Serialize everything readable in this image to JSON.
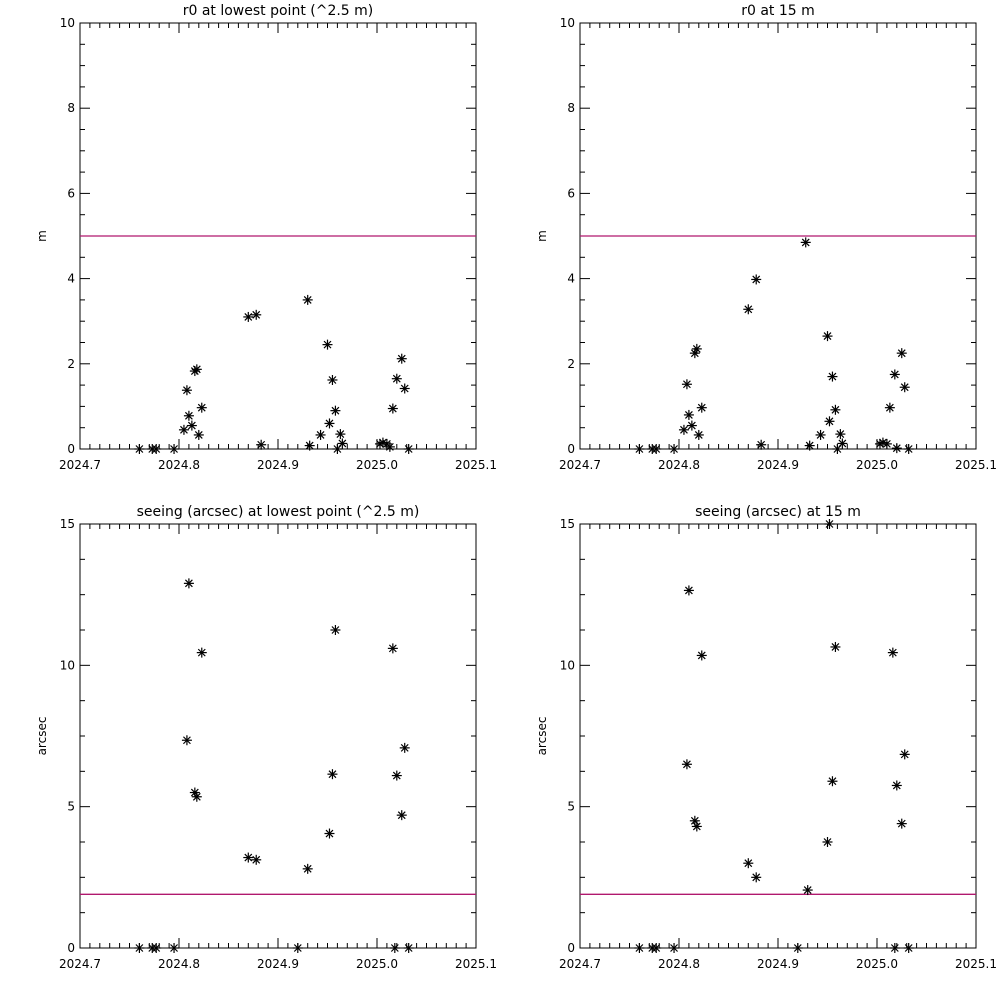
{
  "chart_data": [
    {
      "type": "scatter",
      "title": "r0 at lowest point (^2.5 m)",
      "xlabel": "",
      "ylabel": "m",
      "xlim": [
        2024.7,
        2025.1
      ],
      "ylim": [
        0,
        10
      ],
      "xticks": [
        "2024.7",
        "2024.8",
        "2024.9",
        "2025.0",
        "2025.1"
      ],
      "yticks": [
        "0",
        "2",
        "4",
        "6",
        "8",
        "10"
      ],
      "reference_line": {
        "y": 5,
        "color": "#b0186e"
      },
      "grid": false,
      "marker": "asterisk",
      "points": [
        [
          2024.76,
          0.0
        ],
        [
          2024.773,
          0.0
        ],
        [
          2024.777,
          0.0
        ],
        [
          2024.795,
          0.0
        ],
        [
          2024.805,
          0.45
        ],
        [
          2024.808,
          1.38
        ],
        [
          2024.81,
          0.78
        ],
        [
          2024.813,
          0.55
        ],
        [
          2024.816,
          1.83
        ],
        [
          2024.818,
          1.87
        ],
        [
          2024.82,
          0.33
        ],
        [
          2024.823,
          0.97
        ],
        [
          2024.87,
          3.1
        ],
        [
          2024.878,
          3.15
        ],
        [
          2024.883,
          0.1
        ],
        [
          2024.93,
          3.5
        ],
        [
          2024.932,
          0.08
        ],
        [
          2024.943,
          0.33
        ],
        [
          2024.95,
          2.45
        ],
        [
          2024.952,
          0.6
        ],
        [
          2024.955,
          1.62
        ],
        [
          2024.958,
          0.9
        ],
        [
          2024.96,
          0.0
        ],
        [
          2024.963,
          0.35
        ],
        [
          2024.965,
          0.13
        ],
        [
          2025.003,
          0.12
        ],
        [
          2025.006,
          0.15
        ],
        [
          2025.01,
          0.12
        ],
        [
          2025.013,
          0.05
        ],
        [
          2025.016,
          0.95
        ],
        [
          2025.02,
          1.65
        ],
        [
          2025.025,
          2.12
        ],
        [
          2025.028,
          1.42
        ],
        [
          2025.032,
          0.0
        ]
      ]
    },
    {
      "type": "scatter",
      "title": "r0 at 15 m",
      "xlabel": "",
      "ylabel": "m",
      "xlim": [
        2024.7,
        2025.1
      ],
      "ylim": [
        0,
        10
      ],
      "xticks": [
        "2024.7",
        "2024.8",
        "2024.9",
        "2025.0",
        "2025.1"
      ],
      "yticks": [
        "0",
        "2",
        "4",
        "6",
        "8",
        "10"
      ],
      "reference_line": {
        "y": 5,
        "color": "#b0186e"
      },
      "grid": false,
      "marker": "asterisk",
      "points": [
        [
          2024.76,
          0.0
        ],
        [
          2024.773,
          0.0
        ],
        [
          2024.777,
          0.0
        ],
        [
          2024.795,
          0.0
        ],
        [
          2024.805,
          0.45
        ],
        [
          2024.808,
          1.52
        ],
        [
          2024.81,
          0.8
        ],
        [
          2024.813,
          0.55
        ],
        [
          2024.816,
          2.25
        ],
        [
          2024.818,
          2.35
        ],
        [
          2024.82,
          0.33
        ],
        [
          2024.823,
          0.97
        ],
        [
          2024.87,
          3.28
        ],
        [
          2024.878,
          3.98
        ],
        [
          2024.883,
          0.1
        ],
        [
          2024.928,
          4.85
        ],
        [
          2024.932,
          0.08
        ],
        [
          2024.943,
          0.33
        ],
        [
          2024.95,
          2.65
        ],
        [
          2024.952,
          0.65
        ],
        [
          2024.955,
          1.7
        ],
        [
          2024.958,
          0.92
        ],
        [
          2024.96,
          0.0
        ],
        [
          2024.963,
          0.35
        ],
        [
          2024.965,
          0.13
        ],
        [
          2025.003,
          0.12
        ],
        [
          2025.006,
          0.15
        ],
        [
          2025.01,
          0.12
        ],
        [
          2025.013,
          0.97
        ],
        [
          2025.018,
          1.75
        ],
        [
          2025.02,
          0.02
        ],
        [
          2025.025,
          2.25
        ],
        [
          2025.028,
          1.45
        ],
        [
          2025.032,
          0.0
        ]
      ]
    },
    {
      "type": "scatter",
      "title": "seeing (arcsec) at lowest point (^2.5 m)",
      "xlabel": "",
      "ylabel": "arcsec",
      "xlim": [
        2024.7,
        2025.1
      ],
      "ylim": [
        0,
        15
      ],
      "xticks": [
        "2024.7",
        "2024.8",
        "2024.9",
        "2025.0",
        "2025.1"
      ],
      "yticks": [
        "0",
        "5",
        "10",
        "15"
      ],
      "reference_line": {
        "y": 1.9,
        "color": "#b0186e"
      },
      "grid": false,
      "marker": "asterisk",
      "points": [
        [
          2024.76,
          0.0
        ],
        [
          2024.773,
          0.0
        ],
        [
          2024.777,
          0.0
        ],
        [
          2024.795,
          0.0
        ],
        [
          2024.808,
          7.35
        ],
        [
          2024.81,
          12.9
        ],
        [
          2024.816,
          5.5
        ],
        [
          2024.818,
          5.35
        ],
        [
          2024.823,
          10.45
        ],
        [
          2024.87,
          3.2
        ],
        [
          2024.878,
          3.12
        ],
        [
          2024.92,
          0.0
        ],
        [
          2024.93,
          2.8
        ],
        [
          2024.952,
          4.05
        ],
        [
          2024.955,
          6.15
        ],
        [
          2024.958,
          11.25
        ],
        [
          2025.016,
          10.6
        ],
        [
          2025.018,
          0.0
        ],
        [
          2025.02,
          6.1
        ],
        [
          2025.025,
          4.7
        ],
        [
          2025.028,
          7.08
        ],
        [
          2025.032,
          0.0
        ]
      ]
    },
    {
      "type": "scatter",
      "title": "seeing (arcsec) at 15 m",
      "xlabel": "",
      "ylabel": "arcsec",
      "xlim": [
        2024.7,
        2025.1
      ],
      "ylim": [
        0,
        15
      ],
      "xticks": [
        "2024.7",
        "2024.8",
        "2024.9",
        "2025.0",
        "2025.1"
      ],
      "yticks": [
        "0",
        "5",
        "10",
        "15"
      ],
      "reference_line": {
        "y": 1.9,
        "color": "#b0186e"
      },
      "grid": false,
      "marker": "asterisk",
      "points": [
        [
          2024.76,
          0.0
        ],
        [
          2024.773,
          0.0
        ],
        [
          2024.777,
          0.0
        ],
        [
          2024.795,
          0.0
        ],
        [
          2024.808,
          6.5
        ],
        [
          2024.81,
          12.65
        ],
        [
          2024.816,
          4.5
        ],
        [
          2024.818,
          4.3
        ],
        [
          2024.823,
          10.35
        ],
        [
          2024.87,
          3.0
        ],
        [
          2024.878,
          2.5
        ],
        [
          2024.92,
          0.0
        ],
        [
          2024.93,
          2.05
        ],
        [
          2024.95,
          3.75
        ],
        [
          2024.955,
          5.9
        ],
        [
          2024.958,
          10.65
        ],
        [
          2024.952,
          15.0
        ],
        [
          2025.016,
          10.45
        ],
        [
          2025.018,
          0.0
        ],
        [
          2025.02,
          5.75
        ],
        [
          2025.025,
          4.4
        ],
        [
          2025.028,
          6.85
        ],
        [
          2025.032,
          0.0
        ]
      ]
    }
  ]
}
